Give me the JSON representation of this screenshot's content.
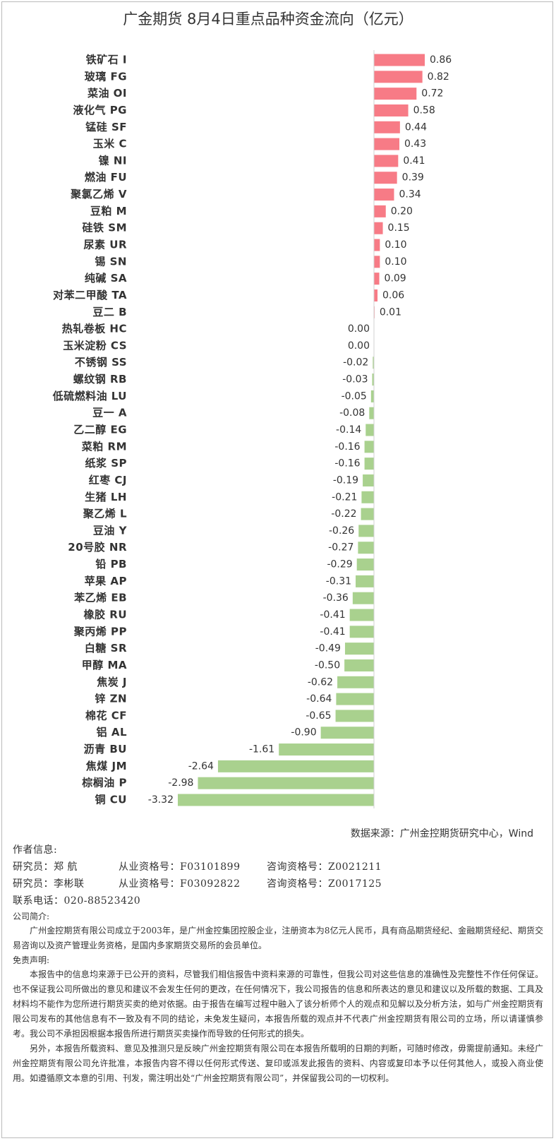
{
  "chart_data": {
    "type": "bar",
    "orientation": "horizontal",
    "title": "广金期货 8月4日重点品种资金流向（亿元）",
    "categories": [
      "铁矿石 I",
      "玻璃 FG",
      "菜油 OI",
      "液化气 PG",
      "锰硅 SF",
      "玉米 C",
      "镍 NI",
      "燃油 FU",
      "聚氯乙烯 V",
      "豆粕 M",
      "硅铁 SM",
      "尿素 UR",
      "锡 SN",
      "纯碱 SA",
      "对苯二甲酸 TA",
      "豆二 B",
      "热轧卷板 HC",
      "玉米淀粉 CS",
      "不锈钢 SS",
      "螺纹钢 RB",
      "低硫燃料油 LU",
      "豆一 A",
      "乙二醇 EG",
      "菜粕 RM",
      "纸浆 SP",
      "红枣 CJ",
      "生猪 LH",
      "聚乙烯 L",
      "豆油 Y",
      "20号胶 NR",
      "铅 PB",
      "苹果 AP",
      "苯乙烯 EB",
      "橡胶 RU",
      "聚丙烯 PP",
      "白糖 SR",
      "甲醇 MA",
      "焦炭 J",
      "锌 ZN",
      "棉花 CF",
      "铝 AL",
      "沥青 BU",
      "焦煤 JM",
      "棕榈油 P",
      "铜 CU"
    ],
    "values": [
      0.86,
      0.82,
      0.72,
      0.58,
      0.44,
      0.43,
      0.41,
      0.39,
      0.34,
      0.2,
      0.15,
      0.1,
      0.1,
      0.09,
      0.06,
      0.01,
      0,
      0,
      -0.02,
      -0.03,
      -0.05,
      -0.08,
      -0.14,
      -0.16,
      -0.16,
      -0.19,
      -0.21,
      -0.22,
      -0.26,
      -0.27,
      -0.29,
      -0.31,
      -0.36,
      -0.41,
      -0.41,
      -0.49,
      -0.5,
      -0.62,
      -0.64,
      -0.65,
      -0.9,
      -1.61,
      -2.64,
      -2.98,
      -3.32
    ],
    "value_labels": [
      "0.86",
      "0.82",
      "0.72",
      "0.58",
      "0.44",
      "0.43",
      "0.41",
      "0.39",
      "0.34",
      "0.20",
      "0.15",
      "0.10",
      "0.10",
      "0.09",
      "0.06",
      "0.01",
      "0.00",
      "0.00",
      "-0.02",
      "-0.03",
      "-0.05",
      "-0.08",
      "-0.14",
      "-0.16",
      "-0.16",
      "-0.19",
      "-0.21",
      "-0.22",
      "-0.26",
      "-0.27",
      "-0.29",
      "-0.31",
      "-0.36",
      "-0.41",
      "-0.41",
      "-0.49",
      "-0.50",
      "-0.62",
      "-0.64",
      "-0.65",
      "-0.90",
      "-1.61",
      "-2.64",
      "-2.98",
      "-3.32"
    ],
    "positive_color": "#f77b86",
    "negative_color": "#a9d18e",
    "source": "数据来源：广州金控期货研究中心，Wind"
  },
  "author_info": {
    "heading": "作者信息:",
    "researchers": [
      {
        "name": "研究员：郑  航",
        "license": "从业资格号：F03101899",
        "consult": "咨询资格号：Z0021211"
      },
      {
        "name": "研究员：李彬联",
        "license": "从业资格号：F03092822",
        "consult": "咨询资格号：Z0017125"
      }
    ],
    "phone": "联系电话：020-88523420"
  },
  "company": {
    "heading": "公司简介:",
    "text": "广州金控期货有限公司成立于2003年，是广州金控集团控股企业，注册资本为8亿元人民币，具有商品期货经纪、金融期货经纪、期货交易咨询以及资产管理业务资格，是国内多家期货交易所的会员单位。"
  },
  "disclaimer": {
    "heading": "免责声明:",
    "paragraphs": [
      "本报告中的信息均来源于已公开的资料，尽管我们相信报告中资料来源的可靠性，但我公司对这些信息的准确性及完整性不作任何保证。也不保证我公司所做出的意见和建议不会发生任何的更改，在任何情况下，我公司报告的信息和所表达的意见和建议以及所载的数据、工具及材料均不能作为您所进行期货买卖的绝对依据。由于报告在编写过程中融入了该分析师个人的观点和见解以及分析方法，如与广州金控期货有限公司发布的其他信息有不一致及有不同的结论，未免发生疑问，本报告所载的观点并不代表广州金控期货有限公司的立场，所以请谨慎参考。我公司不承担因根据本报告所进行期货买卖操作而导致的任何形式的损失。",
      "另外，本报告所载资料、意见及推测只是反映广州金控期货有限公司在本报告所载明的日期的判断，可随时修改，毋需提前通知。未经广州金控期货有限公司允许批准，本报告内容不得以任何形式传送、复印或派发此报告的资料、内容或复印本予以任何其他人，或投入商业使用。如遵循原文本意的引用、刊发，需注明出处“广州金控期货有限公司”，并保留我公司的一切权利。"
    ]
  }
}
